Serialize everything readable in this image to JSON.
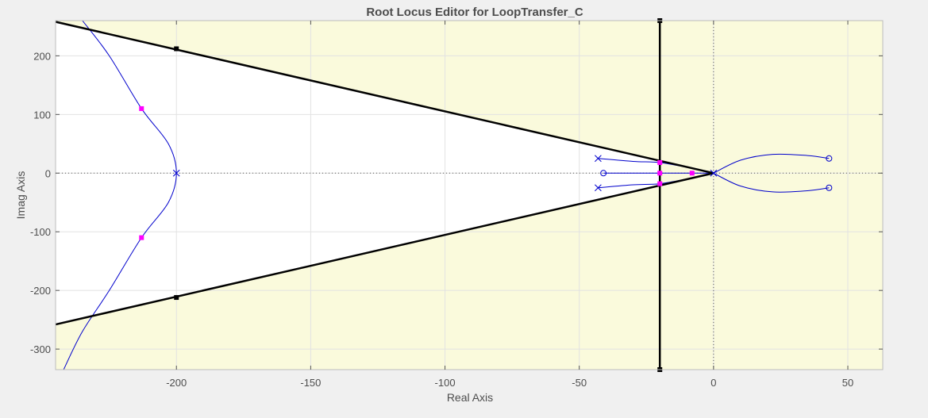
{
  "chart_data": {
    "type": "scatter",
    "title": "Root Locus Editor for LoopTransfer_C",
    "xlabel": "Real Axis",
    "ylabel": "Imag Axis",
    "xlim": [
      -245,
      63
    ],
    "ylim": [
      -335,
      260
    ],
    "xticks": [
      -200,
      -150,
      -100,
      -50,
      0,
      50
    ],
    "yticks": [
      -300,
      -200,
      -100,
      0,
      100,
      200
    ],
    "xtick_labels": [
      "-200",
      "-150",
      "-100",
      "-50",
      "0",
      "50"
    ],
    "ytick_labels": [
      "-300",
      "-200",
      "-100",
      "0",
      "100",
      "200"
    ],
    "grid": true,
    "colors": {
      "background": "#f0f0f0",
      "plot_background": "#fafadc",
      "allowed_region": "#ffffff",
      "locus": "#0000cc",
      "closed_loop_poles": "#ff00ff",
      "constraint": "#000000",
      "grid": "#e2e2e2"
    },
    "open_loop_poles": [
      {
        "re": -200,
        "im": 0
      },
      {
        "re": -43,
        "im": 25
      },
      {
        "re": -43,
        "im": -25
      },
      {
        "re": 0,
        "im": 0
      }
    ],
    "open_loop_zeros": [
      {
        "re": -41,
        "im": 0
      },
      {
        "re": 43,
        "im": 25
      },
      {
        "re": 43,
        "im": -25
      }
    ],
    "closed_loop_poles": [
      {
        "re": -213,
        "im": 110
      },
      {
        "re": -213,
        "im": -110
      },
      {
        "re": -20,
        "im": 18
      },
      {
        "re": -20,
        "im": -18
      },
      {
        "re": -20,
        "im": 0
      },
      {
        "re": -8,
        "im": 0
      }
    ],
    "locus_branches": [
      [
        [
          -235,
          260
        ],
        [
          -225,
          200
        ],
        [
          -213,
          110
        ],
        [
          -203,
          50
        ],
        [
          -200,
          0
        ],
        [
          -203,
          -50
        ],
        [
          -213,
          -110
        ],
        [
          -225,
          -200
        ],
        [
          -235,
          -270
        ],
        [
          -242,
          -335
        ]
      ],
      [
        [
          -43,
          25
        ],
        [
          -30,
          20
        ],
        [
          -20,
          18
        ],
        [
          -10,
          10
        ],
        [
          0,
          0
        ]
      ],
      [
        [
          -43,
          -25
        ],
        [
          -30,
          -20
        ],
        [
          -20,
          -18
        ],
        [
          -10,
          -10
        ],
        [
          0,
          0
        ]
      ],
      [
        [
          -41,
          0
        ],
        [
          -20,
          0
        ],
        [
          -8,
          0
        ],
        [
          0,
          0
        ]
      ],
      [
        [
          0,
          0
        ],
        [
          10,
          22
        ],
        [
          22,
          32
        ],
        [
          35,
          30
        ],
        [
          43,
          25
        ]
      ],
      [
        [
          0,
          0
        ],
        [
          10,
          -22
        ],
        [
          22,
          -32
        ],
        [
          35,
          -30
        ],
        [
          43,
          -25
        ]
      ]
    ],
    "constraints": {
      "damping_lines": [
        {
          "from": [
            0,
            0
          ],
          "to": [
            -245,
            258
          ],
          "handle": [
            -200,
            212
          ]
        },
        {
          "from": [
            0,
            0
          ],
          "to": [
            -245,
            -258
          ],
          "handle": [
            -200,
            -212
          ]
        }
      ],
      "settling_line": {
        "re": -20,
        "handles": [
          260,
          -335
        ]
      }
    }
  }
}
